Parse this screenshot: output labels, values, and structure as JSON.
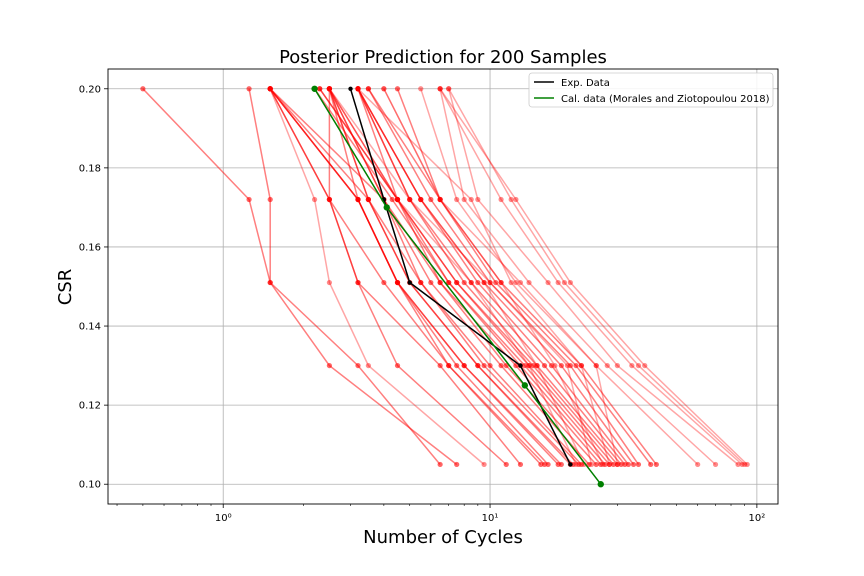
{
  "chart_data": {
    "type": "line",
    "title": "Posterior Prediction for 200 Samples",
    "xlabel": "Number of Cycles",
    "ylabel": "CSR",
    "xscale": "log",
    "xlim": [
      0.37,
      120
    ],
    "ylim": [
      0.095,
      0.205
    ],
    "x_ticks": [
      1,
      10,
      100
    ],
    "x_tick_labels": [
      "10⁰",
      "10¹",
      "10²"
    ],
    "y_ticks": [
      0.1,
      0.12,
      0.14,
      0.16,
      0.18,
      0.2
    ],
    "y_tick_labels": [
      "0.10",
      "0.12",
      "0.14",
      "0.16",
      "0.18",
      "0.20"
    ],
    "grid": true,
    "legend_position": "top-right",
    "csr_levels": [
      0.2,
      0.172,
      0.151,
      0.13,
      0.105
    ],
    "series": [
      {
        "name": "Exp. Data",
        "color": "#000000",
        "x": [
          3.0,
          4.0,
          5.0,
          13.0,
          20.0
        ],
        "y": [
          0.2,
          0.172,
          0.151,
          0.13,
          0.105
        ]
      },
      {
        "name": "Cal. data (Morales and Ziotopoulou 2018)",
        "color": "#008000",
        "x": [
          2.2,
          4.1,
          13.5,
          26.0
        ],
        "y": [
          0.2,
          0.17,
          0.125,
          0.1
        ]
      }
    ],
    "samples_color": "#ff0000",
    "samples": [
      {
        "x": [
          0.5,
          1.25,
          1.5,
          3.2,
          6.5
        ],
        "opacity": 0.5
      },
      {
        "x": [
          1.25,
          1.5,
          1.5,
          2.5,
          7.5
        ],
        "opacity": 0.5
      },
      {
        "x": [
          1.5,
          2.2,
          2.5,
          3.5,
          9.5
        ],
        "opacity": 0.35
      },
      {
        "x": [
          1.5,
          2.5,
          3.2,
          4.5,
          11.5
        ],
        "opacity": 0.5
      },
      {
        "x": [
          1.5,
          2.5,
          3.2,
          6.5,
          13.0
        ],
        "opacity": 0.5
      },
      {
        "x": [
          1.5,
          3.2,
          4.5,
          7.0,
          15.5
        ],
        "opacity": 0.5
      },
      {
        "x": [
          1.5,
          3.2,
          4.5,
          7.5,
          16.5
        ],
        "opacity": 0.5
      },
      {
        "x": [
          1.5,
          3.2,
          4.5,
          8.0,
          18.0
        ],
        "opacity": 0.5
      },
      {
        "x": [
          1.5,
          3.5,
          5.0,
          9.0,
          20.0
        ],
        "opacity": 0.5
      },
      {
        "x": [
          1.5,
          4.0,
          5.5,
          9.5,
          21.5
        ],
        "opacity": 0.5
      },
      {
        "x": [
          2.5,
          2.5,
          4.0,
          7.0,
          16.0
        ],
        "opacity": 0.5
      },
      {
        "x": [
          2.5,
          3.2,
          4.5,
          8.0,
          18.5
        ],
        "opacity": 0.5
      },
      {
        "x": [
          2.5,
          3.5,
          5.0,
          9.0,
          20.5
        ],
        "opacity": 0.5
      },
      {
        "x": [
          2.5,
          3.5,
          5.5,
          10.0,
          22.0
        ],
        "opacity": 0.5
      },
      {
        "x": [
          2.5,
          4.0,
          6.0,
          11.0,
          23.5
        ],
        "opacity": 0.5
      },
      {
        "x": [
          2.5,
          4.0,
          6.5,
          11.5,
          25.0
        ],
        "opacity": 0.5
      },
      {
        "x": [
          2.5,
          4.5,
          6.5,
          12.5,
          26.0
        ],
        "opacity": 0.5
      },
      {
        "x": [
          2.3,
          4.5,
          7.0,
          13.0,
          27.0
        ],
        "opacity": 0.5
      },
      {
        "x": [
          2.2,
          4.3,
          7.0,
          13.5,
          28.0
        ],
        "opacity": 0.5
      },
      {
        "x": [
          2.3,
          4.5,
          7.5,
          14.0,
          29.0
        ],
        "opacity": 0.5
      },
      {
        "x": [
          3.2,
          4.5,
          7.5,
          14.5,
          30.0
        ],
        "opacity": 0.5
      },
      {
        "x": [
          3.2,
          5.0,
          8.0,
          15.0,
          31.0
        ],
        "opacity": 0.5
      },
      {
        "x": [
          3.2,
          5.0,
          8.5,
          16.0,
          32.0
        ],
        "opacity": 0.5
      },
      {
        "x": [
          3.2,
          5.5,
          9.0,
          17.0,
          33.0
        ],
        "opacity": 0.5
      },
      {
        "x": [
          3.2,
          5.5,
          9.5,
          18.5,
          34.5
        ],
        "opacity": 0.5
      },
      {
        "x": [
          3.5,
          6.0,
          10.0,
          20.0,
          36.0
        ],
        "opacity": 0.5
      },
      {
        "x": [
          3.5,
          6.5,
          10.5,
          21.0,
          40.0
        ],
        "opacity": 0.5
      },
      {
        "x": [
          4.5,
          6.5,
          11.0,
          22.0,
          42.0
        ],
        "opacity": 0.5
      },
      {
        "x": [
          5.5,
          7.5,
          12.5,
          25.0,
          60.0
        ],
        "opacity": 0.35
      },
      {
        "x": [
          6.5,
          8.0,
          14.0,
          27.5,
          70.0
        ],
        "opacity": 0.35
      },
      {
        "x": [
          7.0,
          9.0,
          16.5,
          30.0,
          85.0
        ],
        "opacity": 0.35
      },
      {
        "x": [
          6.5,
          11.0,
          18.0,
          34.0,
          88.0
        ],
        "opacity": 0.35
      },
      {
        "x": [
          7.0,
          12.0,
          19.0,
          36.0,
          90.0
        ],
        "opacity": 0.35
      },
      {
        "x": [
          6.5,
          12.5,
          20.0,
          38.0,
          92.0
        ],
        "opacity": 0.35
      },
      {
        "x": [
          4.0,
          6.5,
          13.0,
          25.0,
          30.0
        ],
        "opacity": 0.35
      },
      {
        "x": [
          3.2,
          8.5,
          12.0,
          22.0,
          28.0
        ],
        "opacity": 0.35
      },
      {
        "x": [
          2.5,
          5.0,
          10.0,
          19.5,
          24.0
        ],
        "opacity": 0.35
      },
      {
        "x": [
          2.5,
          4.5,
          8.5,
          14.0,
          21.0
        ],
        "opacity": 0.35
      },
      {
        "x": [
          3.2,
          5.5,
          9.5,
          15.0,
          22.5
        ],
        "opacity": 0.35
      },
      {
        "x": [
          4.0,
          6.5,
          11.0,
          17.5,
          26.5
        ],
        "opacity": 0.35
      }
    ]
  }
}
